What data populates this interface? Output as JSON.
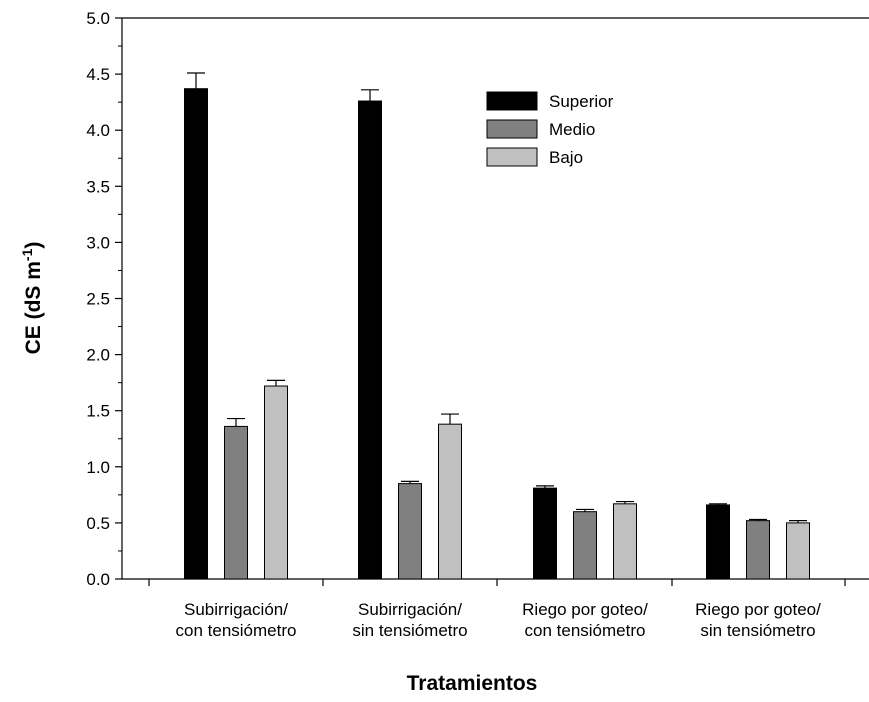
{
  "chart_data": {
    "type": "bar",
    "xlabel": "Tratamientos",
    "ylabel": "CE (dS m",
    "ylabel_superscript": "-1",
    "ylabel_close": ")",
    "ylim": [
      0,
      5
    ],
    "yticks": [
      "0.0",
      "0.5",
      "1.0",
      "1.5",
      "2.0",
      "2.5",
      "3.0",
      "3.5",
      "4.0",
      "4.5",
      "5.0"
    ],
    "categories": [
      [
        "Subirrigación/",
        "con tensiómetro"
      ],
      [
        "Subirrigación/",
        "sin tensiómetro"
      ],
      [
        "Riego por goteo/",
        "con tensiómetro"
      ],
      [
        "Riego por goteo/",
        "sin tensiómetro"
      ]
    ],
    "series": [
      {
        "name": "Superior",
        "color": "#000000",
        "values": [
          4.37,
          4.26,
          0.81,
          0.66
        ],
        "errors": [
          0.14,
          0.1,
          0.02,
          0.01
        ]
      },
      {
        "name": "Medio",
        "color": "#808080",
        "values": [
          1.36,
          0.85,
          0.6,
          0.52
        ],
        "errors": [
          0.07,
          0.02,
          0.02,
          0.01
        ]
      },
      {
        "name": "Bajo",
        "color": "#c0c0c0",
        "values": [
          1.72,
          1.38,
          0.67,
          0.5
        ],
        "errors": [
          0.05,
          0.09,
          0.02,
          0.02
        ]
      }
    ],
    "legend_position": "top-right",
    "grid": false
  }
}
